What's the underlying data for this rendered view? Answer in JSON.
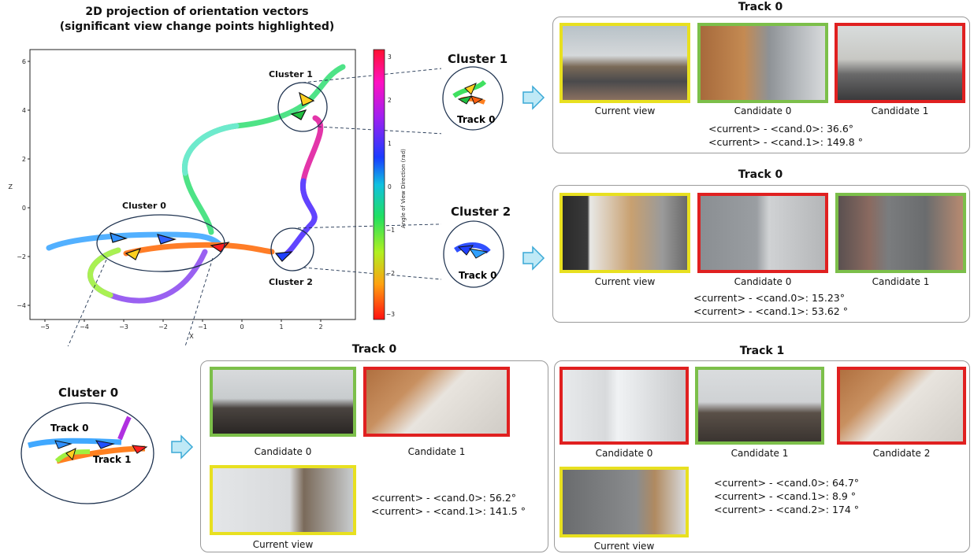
{
  "plot": {
    "title_line1": "2D projection of orientation vectors",
    "title_line2": "(significant view change points highlighted)",
    "xlabel": "X",
    "ylabel": "Z",
    "colorbar_label": "Angle of View Direction (rad)",
    "x_ticks": [
      "−5",
      "−4",
      "−3",
      "−2",
      "−1",
      "0",
      "1",
      "2"
    ],
    "y_ticks": [
      "6",
      "4",
      "2",
      "0",
      "−2",
      "−4"
    ],
    "cbar_ticks": [
      "3",
      "2",
      "1",
      "0",
      "−1",
      "−2",
      "−3"
    ],
    "cluster_labels": [
      "Cluster 0",
      "Cluster 1",
      "Cluster 2"
    ]
  },
  "zooms": {
    "cluster1": {
      "title": "Cluster 1",
      "track": "Track 0"
    },
    "cluster2": {
      "title": "Cluster 2",
      "track": "Track 0"
    },
    "cluster0": {
      "title": "Cluster 0",
      "track0": "Track 0",
      "track1": "Track 1"
    }
  },
  "colors": {
    "current": "#e8e020",
    "match": "#7cbf4a",
    "mismatch": "#e02020",
    "arrow": "#9fdcef"
  },
  "panels": {
    "p1": {
      "title": "Track 0",
      "captions": [
        "Current view",
        "Candidate 0",
        "Candidate 1"
      ],
      "diffs": [
        "<current> - <cand.0>: 36.6°",
        "<current> - <cand.1>: 149.8 °"
      ]
    },
    "p2": {
      "title": "Track 0",
      "captions": [
        "Current view",
        "Candidate 0",
        "Candidate 1"
      ],
      "diffs": [
        "<current> - <cand.0>: 15.23°",
        "<current> - <cand.1>: 53.62 °"
      ]
    },
    "p3": {
      "title": "Track 0",
      "captions": [
        "Candidate 0",
        "Candidate 1",
        "Current view"
      ],
      "diffs": [
        "<current> - <cand.0>: 56.2°",
        "<current> - <cand.1>: 141.5 °"
      ]
    },
    "p4": {
      "title": "Track 1",
      "captions": [
        "Candidate 0",
        "Candidate 1",
        "Candidate 2",
        "Current view"
      ],
      "diffs": [
        "<current> - <cand.0>: 64.7°",
        "<current> - <cand.1>: 8.9 °",
        "<current> - <cand.2>: 174 °"
      ]
    }
  }
}
